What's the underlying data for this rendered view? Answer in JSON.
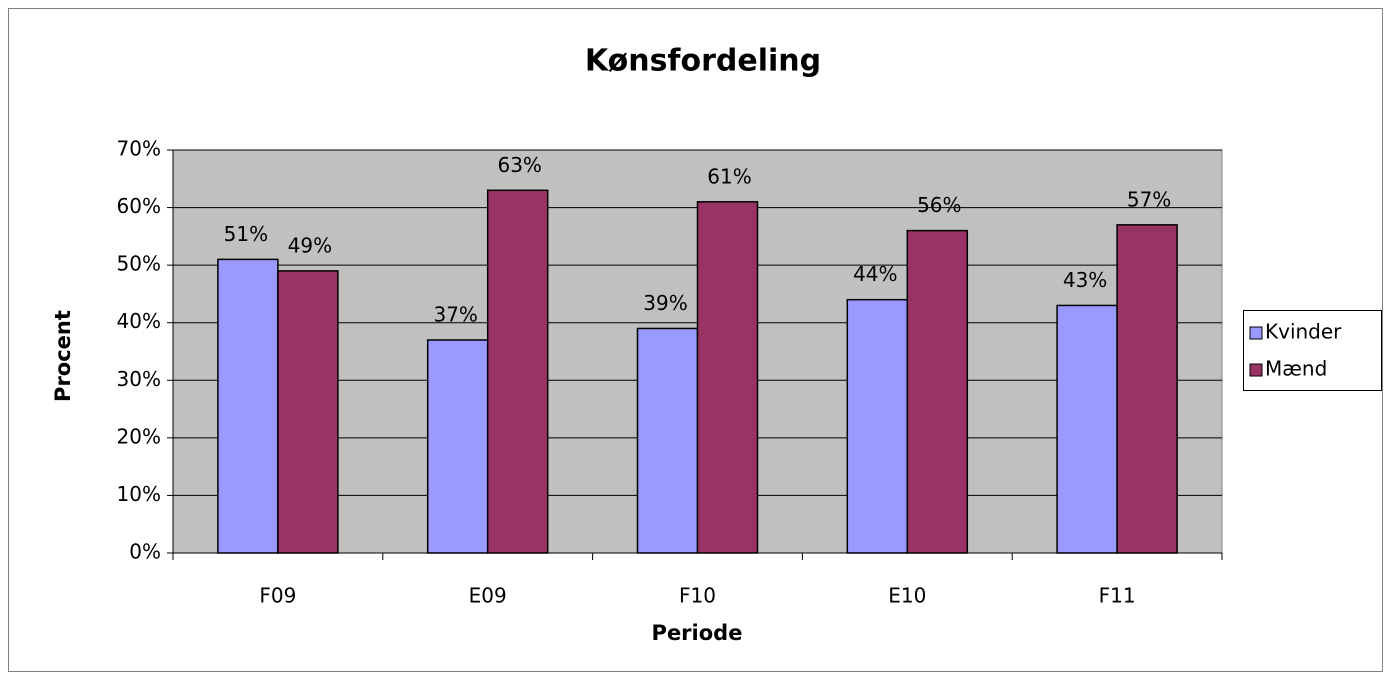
{
  "chart_data": {
    "type": "bar",
    "title": "Kønsfordeling",
    "x_label": "Periode",
    "y_label": "Procent",
    "categories": [
      "F09",
      "E09",
      "F10",
      "E10",
      "F11"
    ],
    "series": [
      {
        "name": "Kvinder",
        "color": "#9999ff",
        "values": [
          51,
          37,
          39,
          44,
          43
        ],
        "value_labels": [
          "51%",
          "37%",
          "39%",
          "44%",
          "43%"
        ]
      },
      {
        "name": "Mænd",
        "color": "#993366",
        "values": [
          49,
          63,
          61,
          56,
          57
        ],
        "value_labels": [
          "49%",
          "63%",
          "61%",
          "56%",
          "57%"
        ]
      }
    ],
    "ylim": [
      0,
      70
    ],
    "yticks": [
      {
        "value": 0,
        "label": "0%"
      },
      {
        "value": 10,
        "label": "10%"
      },
      {
        "value": 20,
        "label": "20%"
      },
      {
        "value": 30,
        "label": "30%"
      },
      {
        "value": 40,
        "label": "40%"
      },
      {
        "value": 50,
        "label": "50%"
      },
      {
        "value": 60,
        "label": "60%"
      },
      {
        "value": 70,
        "label": "70%"
      }
    ],
    "grid": true,
    "legend": "right",
    "plot_background": "#c0c0c0"
  }
}
